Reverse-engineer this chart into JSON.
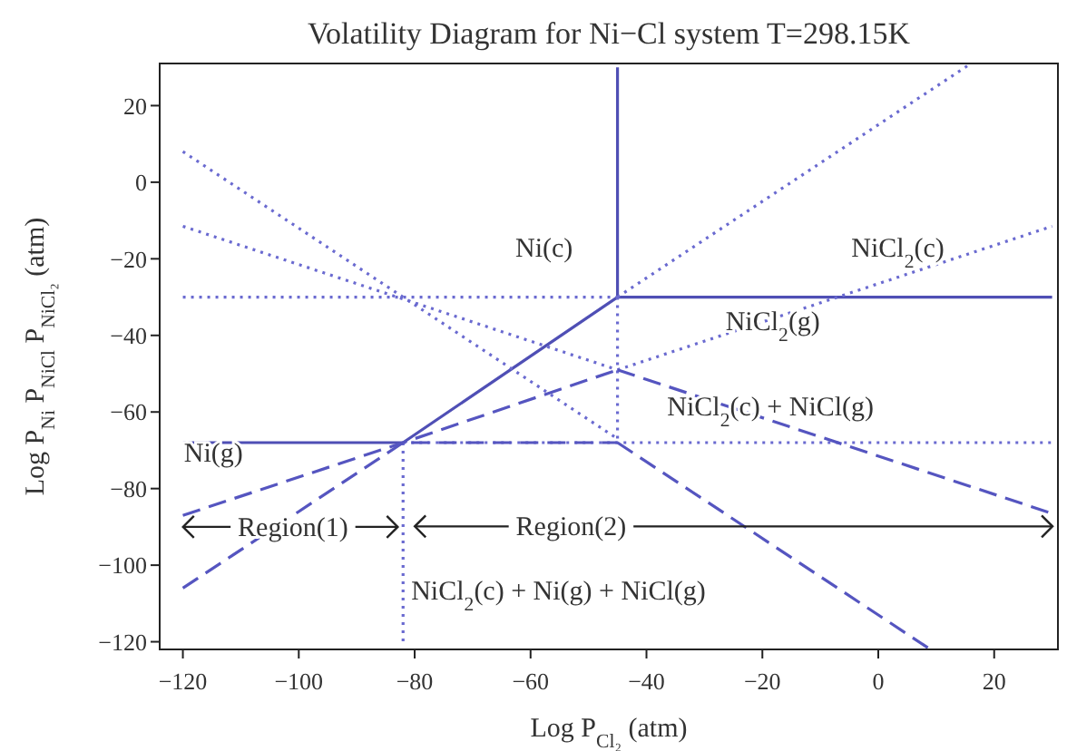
{
  "chart_data": {
    "type": "line",
    "title": "Volatility Diagram for Ni−Cl system  T=298.15K",
    "xlabel": "Log P$_{Cl₂}$ (atm)",
    "ylabel": "Log P$_{Ni}$ P$_{NiCl}$ P$_{NiCl₂}$ (atm)",
    "xlim": [
      -124,
      31
    ],
    "ylim": [
      -122,
      31
    ],
    "xticks": [
      -120,
      -100,
      -80,
      -60,
      -40,
      -20,
      0,
      20
    ],
    "yticks": [
      -120,
      -100,
      -80,
      -60,
      -40,
      -20,
      0,
      20
    ],
    "grid": false,
    "marker": "none",
    "annotations": [
      "Ni(c)",
      "NiCl$_{2}$(c)",
      "NiCl$_{2}$(g)",
      "NiCl$_{2}$(c) + NiCl(g)",
      "Ni(g)",
      "NiCl$_{2}$(c) + Ni(g) + NiCl(g)",
      {
        "text": "Region(1)",
        "x": -101,
        "y": -90
      },
      "Region(2)"
    ],
    "series": [
      {
        "color": "#4f4fb5",
        "line_style": "solid",
        "x": [
          -120,
          -82
        ],
        "values": [
          -68,
          -68
        ]
      },
      {
        "color": "#4f4fb5",
        "line_style": "solid",
        "x": [
          -82,
          -45
        ],
        "values": [
          -68,
          -30
        ]
      },
      {
        "color": "#4f4fb5",
        "line_style": "solid",
        "x": [
          -45,
          30
        ],
        "values": [
          -30,
          -30
        ]
      },
      {
        "color": "#4f4fb5",
        "line_style": "solid",
        "x": [
          -45,
          -45
        ],
        "values": [
          -30,
          30
        ]
      },
      {
        "color": "#6a6ad0",
        "line_style": "dotted",
        "x": [
          -120,
          -45
        ],
        "values": [
          -30,
          -30
        ]
      },
      {
        "color": "#6a6ad0",
        "line_style": "dotted",
        "x": [
          -45,
          -45
        ],
        "values": [
          -30,
          -68
        ]
      },
      {
        "color": "#6a6ad0",
        "line_style": "dotted",
        "x": [
          -82,
          30
        ],
        "values": [
          -68,
          -68
        ]
      },
      {
        "color": "#6a6ad0",
        "line_style": "dotted",
        "x": [
          -82,
          -82
        ],
        "values": [
          -68,
          -121
        ]
      },
      {
        "color": "#6a6ad0",
        "line_style": "dotted",
        "x": [
          -120,
          -45
        ],
        "values": [
          8,
          -67
        ]
      },
      {
        "color": "#6a6ad0",
        "line_style": "dotted",
        "x": [
          -120,
          -45
        ],
        "values": [
          -11.5,
          -49
        ]
      },
      {
        "color": "#6a6ad0",
        "line_style": "dotted",
        "x": [
          -45,
          30
        ],
        "values": [
          -49,
          -11.5
        ]
      },
      {
        "color": "#6a6ad0",
        "line_style": "dotted",
        "x": [
          -45,
          16
        ],
        "values": [
          -30,
          31
        ]
      },
      {
        "color": "#5555c0",
        "line_style": "dashed",
        "x": [
          -120,
          -82,
          -45
        ],
        "values": [
          -87,
          -68,
          -49
        ]
      },
      {
        "color": "#5555c0",
        "line_style": "dashed",
        "x": [
          -45,
          30
        ],
        "values": [
          -49,
          -86.5
        ]
      },
      {
        "color": "#5555c0",
        "line_style": "dashed",
        "x": [
          -120,
          -82,
          -45
        ],
        "values": [
          -106,
          -68,
          -68
        ]
      },
      {
        "color": "#5555c0",
        "line_style": "dashed",
        "x": [
          -45,
          9
        ],
        "values": [
          -68,
          -122
        ]
      }
    ]
  }
}
